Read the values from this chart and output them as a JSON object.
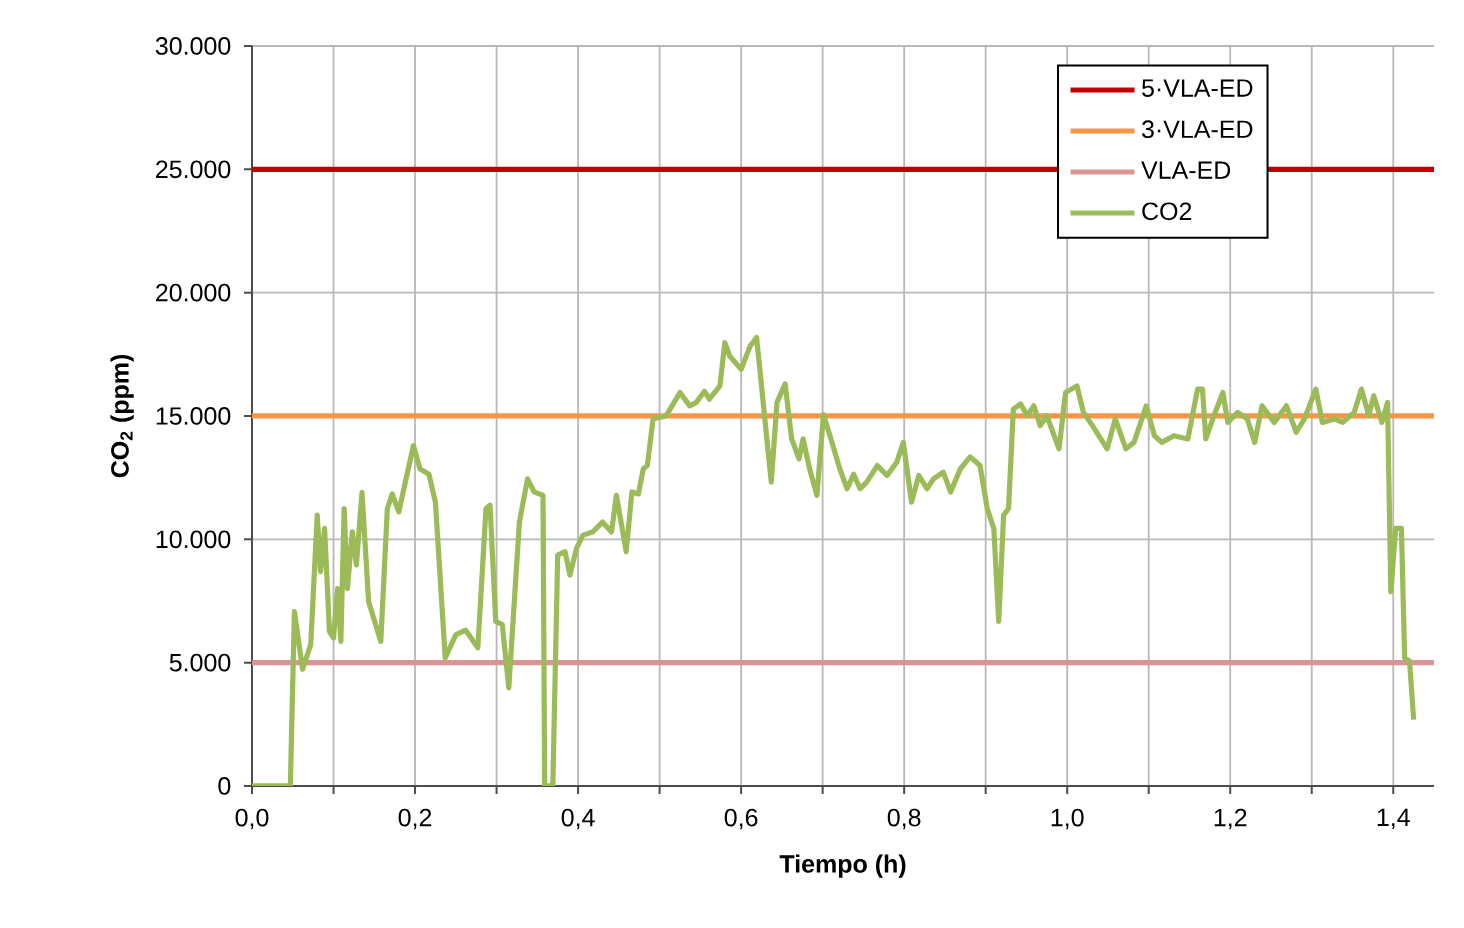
{
  "chart_data": {
    "type": "line",
    "xlabel": "Tiempo (h)",
    "ylabel": "CO$_{2}$ (ppm)",
    "xlim": [
      0,
      1.45
    ],
    "ylim": [
      0,
      30000
    ],
    "xticks": [
      {
        "value": 0,
        "label": "0,0"
      },
      {
        "value": 0.1,
        "label": null
      },
      {
        "value": 0.2,
        "label": "0,2"
      },
      {
        "value": 0.3,
        "label": null
      },
      {
        "value": 0.4,
        "label": "0,4"
      },
      {
        "value": 0.5,
        "label": null
      },
      {
        "value": 0.6,
        "label": "0,6"
      },
      {
        "value": 0.7,
        "label": null
      },
      {
        "value": 0.8,
        "label": "0,8"
      },
      {
        "value": 0.9,
        "label": null
      },
      {
        "value": 1.0,
        "label": "1,0"
      },
      {
        "value": 1.1,
        "label": null
      },
      {
        "value": 1.2,
        "label": "1,2"
      },
      {
        "value": 1.3,
        "label": null
      },
      {
        "value": 1.4,
        "label": "1,4"
      }
    ],
    "yticks": [
      0,
      {
        "value": 5000,
        "label": "5.000"
      },
      {
        "value": 10000,
        "label": "10.000"
      },
      {
        "value": 15000,
        "label": "15.000"
      },
      {
        "value": 20000,
        "label": "20.000"
      },
      {
        "value": 25000,
        "label": "25.000"
      },
      {
        "value": 30000,
        "label": "30.000"
      }
    ],
    "grid": true,
    "legend": "top right",
    "marker": "none",
    "line_style": "solid",
    "series": [
      {
        "name": "5·VLA-ED",
        "color": "#c00000",
        "x": [
          0,
          1.45
        ],
        "values": [
          25000,
          25000
        ]
      },
      {
        "name": "3·VLA-ED",
        "color": "#f79646",
        "x": [
          0,
          1.45
        ],
        "values": [
          15000,
          15000
        ]
      },
      {
        "name": "VLA-ED",
        "color": "#d99594",
        "x": [
          0,
          1.45
        ],
        "values": [
          5000,
          5000
        ]
      },
      {
        "name": "CO2",
        "color": "#9bbb59",
        "x": [
          0,
          0.047,
          0.052,
          0.062,
          0.072,
          0.08,
          0.084,
          0.089,
          0.095,
          0.1,
          0.105,
          0.109,
          0.113,
          0.117,
          0.123,
          0.128,
          0.135,
          0.143,
          0.158,
          0.166,
          0.172,
          0.18,
          0.198,
          0.206,
          0.217,
          0.225,
          0.237,
          0.25,
          0.262,
          0.277,
          0.287,
          0.292,
          0.299,
          0.307,
          0.315,
          0.328,
          0.338,
          0.346,
          0.357,
          0.359,
          0.369,
          0.375,
          0.384,
          0.39,
          0.398,
          0.406,
          0.418,
          0.43,
          0.441,
          0.447,
          0.459,
          0.466,
          0.474,
          0.48,
          0.485,
          0.492,
          0.508,
          0.525,
          0.537,
          0.545,
          0.555,
          0.561,
          0.574,
          0.58,
          0.586,
          0.6,
          0.611,
          0.619,
          0.632,
          0.637,
          0.644,
          0.654,
          0.662,
          0.671,
          0.676,
          0.684,
          0.693,
          0.701,
          0.709,
          0.721,
          0.73,
          0.738,
          0.746,
          0.754,
          0.767,
          0.779,
          0.791,
          0.799,
          0.809,
          0.818,
          0.828,
          0.836,
          0.848,
          0.857,
          0.869,
          0.881,
          0.893,
          0.902,
          0.91,
          0.916,
          0.922,
          0.928,
          0.934,
          0.943,
          0.951,
          0.959,
          0.967,
          0.975,
          0.99,
          0.998,
          1.012,
          1.02,
          1.031,
          1.049,
          1.059,
          1.072,
          1.082,
          1.097,
          1.107,
          1.116,
          1.131,
          1.148,
          1.16,
          1.166,
          1.17,
          1.18,
          1.191,
          1.197,
          1.209,
          1.221,
          1.23,
          1.239,
          1.254,
          1.269,
          1.281,
          1.291,
          1.305,
          1.313,
          1.328,
          1.338,
          1.352,
          1.361,
          1.37,
          1.376,
          1.386,
          1.393,
          1.397,
          1.403,
          1.41,
          1.414,
          1.42,
          1.425
        ],
        "values": [
          0,
          0,
          7070,
          4730,
          5730,
          10980,
          8690,
          10440,
          6270,
          6000,
          8000,
          5860,
          11240,
          8000,
          10300,
          8960,
          11900,
          7480,
          5860,
          11240,
          11840,
          11110,
          13800,
          12860,
          12640,
          11510,
          5190,
          6130,
          6320,
          5600,
          11240,
          11380,
          6670,
          6540,
          3980,
          10700,
          12450,
          11920,
          11780,
          0,
          0,
          9360,
          9500,
          8550,
          9630,
          10170,
          10300,
          10700,
          10300,
          11780,
          9500,
          11920,
          11840,
          12860,
          12990,
          14880,
          15010,
          15950,
          15410,
          15550,
          16000,
          15680,
          16220,
          17970,
          17430,
          16890,
          17830,
          18180,
          13930,
          12320,
          15550,
          16300,
          14070,
          13260,
          14070,
          12860,
          11780,
          15060,
          14200,
          12860,
          12050,
          12640,
          12050,
          12320,
          12990,
          12590,
          13130,
          13930,
          11510,
          12590,
          12050,
          12450,
          12720,
          11920,
          12860,
          13340,
          12990,
          11240,
          10440,
          6670,
          10980,
          11240,
          15280,
          15490,
          15010,
          15410,
          14610,
          15010,
          13670,
          15950,
          16220,
          15140,
          14610,
          13670,
          14880,
          13670,
          13930,
          15410,
          14200,
          13930,
          14200,
          14070,
          16090,
          16090,
          14070,
          15010,
          15950,
          14740,
          15140,
          14880,
          13930,
          15410,
          14740,
          15410,
          14340,
          14880,
          16090,
          14740,
          14880,
          14740,
          15140,
          16090,
          15010,
          15820,
          14740,
          15550,
          7880,
          10440,
          10440,
          5190,
          5060,
          2690
        ]
      }
    ]
  }
}
